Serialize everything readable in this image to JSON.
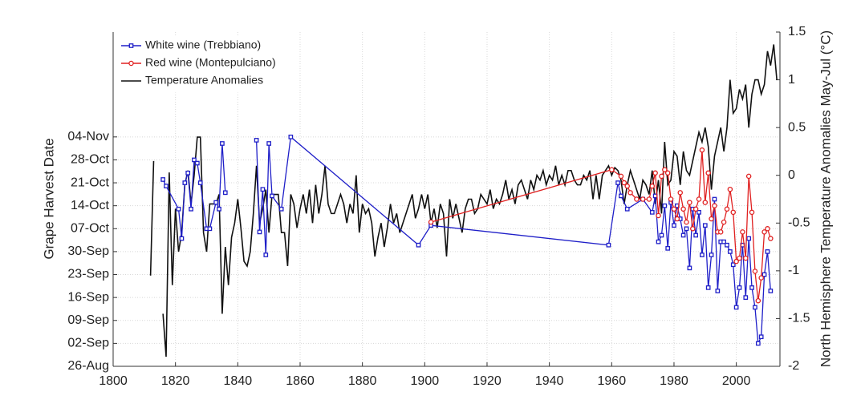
{
  "chart_data": {
    "type": "line",
    "ylabel": "Grape Harvest Date",
    "y2label": "North Hemisphere Temperature Anomalies May-Jul (°C)",
    "xlim": [
      1800,
      2014
    ],
    "xticks": [
      1800,
      1820,
      1840,
      1860,
      1880,
      1900,
      1920,
      1940,
      1960,
      1980,
      2000
    ],
    "ylim": [
      238,
      340
    ],
    "yticks": [
      {
        "value": 238,
        "label": "26-Aug"
      },
      {
        "value": 245,
        "label": "02-Sep"
      },
      {
        "value": 252,
        "label": "09-Sep"
      },
      {
        "value": 259,
        "label": "16-Sep"
      },
      {
        "value": 266,
        "label": "23-Sep"
      },
      {
        "value": 273,
        "label": "30-Sep"
      },
      {
        "value": 280,
        "label": "07-Oct"
      },
      {
        "value": 287,
        "label": "14-Oct"
      },
      {
        "value": 294,
        "label": "21-Oct"
      },
      {
        "value": 301,
        "label": "28-Oct"
      },
      {
        "value": 308,
        "label": "04-Nov"
      }
    ],
    "y2lim": [
      -2,
      1.5
    ],
    "y2ticks": [
      -2,
      -1.5,
      -1,
      -0.5,
      0,
      0.5,
      1,
      1.5
    ],
    "grid": true,
    "legend": "upper left",
    "series": [
      {
        "name": "White wine (Trebbiano)",
        "color": "#1f1fc8",
        "marker": "square",
        "axis": "y",
        "x": [
          1816,
          1817,
          1821,
          1822,
          1823,
          1824,
          1825,
          1826,
          1827,
          1828,
          1830,
          1831,
          1833,
          1834,
          1835,
          1836,
          1841,
          1846,
          1847,
          1848,
          1849,
          1850,
          1851,
          1854,
          1857,
          1898,
          1902,
          1959,
          1962,
          1963,
          1965,
          1970,
          1973,
          1974,
          1975,
          1976,
          1977,
          1978,
          1979,
          1980,
          1981,
          1982,
          1983,
          1984,
          1985,
          1986,
          1987,
          1988,
          1989,
          1990,
          1991,
          1992,
          1993,
          1994,
          1995,
          1996,
          1997,
          1998,
          1999,
          2000,
          2001,
          2002,
          2003,
          2004,
          2005,
          2006,
          2007,
          2008,
          2009,
          2010,
          2011
        ],
        "values": [
          295,
          293,
          286,
          277,
          294,
          297,
          286,
          301,
          300,
          294,
          280,
          280,
          288,
          286,
          306,
          291,
          null,
          307,
          279,
          292,
          272,
          306,
          290,
          286,
          308,
          275,
          281,
          275,
          294,
          290,
          286,
          289,
          285,
          290,
          276,
          278,
          287,
          274,
          288,
          281,
          287,
          283,
          278,
          280,
          268,
          286,
          278,
          285,
          272,
          281,
          262,
          272,
          289,
          261,
          276,
          276,
          275,
          273,
          269,
          256,
          262,
          275,
          259,
          277,
          262,
          256,
          245,
          247,
          266,
          273,
          261
        ]
      },
      {
        "name": "Red wine (Montepulciano)",
        "color": "#e02020",
        "marker": "circle",
        "axis": "y",
        "x": [
          1902,
          1960,
          1963,
          1964,
          1965,
          1966,
          1968,
          1970,
          1972,
          1973,
          1974,
          1975,
          1976,
          1977,
          1978,
          1979,
          1980,
          1981,
          1982,
          1983,
          1984,
          1985,
          1986,
          1987,
          1988,
          1989,
          1990,
          1991,
          1992,
          1993,
          1994,
          1995,
          1996,
          1997,
          1998,
          1999,
          2000,
          2001,
          2002,
          2003,
          2004,
          2005,
          2006,
          2007,
          2008,
          2009,
          2010,
          2011
        ],
        "values": [
          282,
          298,
          296,
          294,
          293,
          291,
          289,
          289,
          289,
          293,
          297,
          284,
          296,
          298,
          297,
          289,
          286,
          283,
          291,
          286,
          282,
          288,
          280,
          286,
          289,
          304,
          288,
          297,
          283,
          287,
          279,
          279,
          282,
          286,
          292,
          285,
          270,
          271,
          279,
          271,
          296,
          285,
          267,
          258,
          265,
          279,
          280,
          277
        ]
      },
      {
        "name": "Temperature Anomalies",
        "color": "#111111",
        "marker": "none",
        "axis": "y2",
        "x": [
          1812,
          1813,
          1814,
          1815,
          1816,
          1817,
          1818,
          1819,
          1820,
          1821,
          1822,
          1823,
          1824,
          1825,
          1826,
          1827,
          1828,
          1829,
          1830,
          1831,
          1832,
          1833,
          1834,
          1835,
          1836,
          1837,
          1838,
          1839,
          1840,
          1841,
          1842,
          1843,
          1844,
          1845,
          1846,
          1847,
          1848,
          1849,
          1850,
          1851,
          1852,
          1853,
          1854,
          1855,
          1856,
          1857,
          1858,
          1859,
          1860,
          1861,
          1862,
          1863,
          1864,
          1865,
          1866,
          1867,
          1868,
          1869,
          1870,
          1871,
          1872,
          1873,
          1874,
          1875,
          1876,
          1877,
          1878,
          1879,
          1880,
          1881,
          1882,
          1883,
          1884,
          1885,
          1886,
          1887,
          1888,
          1889,
          1890,
          1891,
          1892,
          1893,
          1894,
          1895,
          1896,
          1897,
          1898,
          1899,
          1900,
          1901,
          1902,
          1903,
          1904,
          1905,
          1906,
          1907,
          1908,
          1909,
          1910,
          1911,
          1912,
          1913,
          1914,
          1915,
          1916,
          1917,
          1918,
          1919,
          1920,
          1921,
          1922,
          1923,
          1924,
          1925,
          1926,
          1927,
          1928,
          1929,
          1930,
          1931,
          1932,
          1933,
          1934,
          1935,
          1936,
          1937,
          1938,
          1939,
          1940,
          1941,
          1942,
          1943,
          1944,
          1945,
          1946,
          1947,
          1948,
          1949,
          1950,
          1951,
          1952,
          1953,
          1954,
          1955,
          1956,
          1957,
          1958,
          1959,
          1960,
          1961,
          1962,
          1963,
          1964,
          1965,
          1966,
          1967,
          1968,
          1969,
          1970,
          1971,
          1972,
          1973,
          1974,
          1975,
          1976,
          1977,
          1978,
          1979,
          1980,
          1981,
          1982,
          1983,
          1984,
          1985,
          1986,
          1987,
          1988,
          1989,
          1990,
          1991,
          1992,
          1993,
          1994,
          1995,
          1996,
          1997,
          1998,
          1999,
          2000,
          2001,
          2002,
          2003,
          2004,
          2005,
          2006,
          2007,
          2008,
          2009,
          2010,
          2011,
          2012,
          2013
        ],
        "values": [
          -1.05,
          0.15,
          null,
          null,
          -1.45,
          -1.9,
          0.03,
          -1.15,
          -0.35,
          -0.8,
          -0.6,
          -0.1,
          0.05,
          -0.3,
          0.0,
          0.4,
          0.4,
          -0.6,
          -0.8,
          -0.3,
          -0.3,
          -0.3,
          -0.2,
          -1.45,
          -0.75,
          -1.15,
          -0.65,
          -0.5,
          -0.25,
          -0.55,
          -0.9,
          -0.95,
          -0.8,
          -0.4,
          0.1,
          -0.5,
          -0.35,
          -0.15,
          -0.6,
          -0.2,
          -0.2,
          -0.2,
          -0.6,
          -0.6,
          -0.95,
          -0.2,
          -0.3,
          -0.55,
          -0.35,
          -0.2,
          -0.4,
          -0.15,
          -0.5,
          -0.1,
          -0.4,
          -0.2,
          0.1,
          -0.3,
          -0.4,
          -0.4,
          -0.3,
          -0.2,
          -0.3,
          -0.5,
          -0.3,
          -0.4,
          0.0,
          -0.6,
          -0.3,
          -0.4,
          -0.35,
          -0.5,
          -0.85,
          -0.65,
          -0.5,
          -0.75,
          -0.55,
          -0.3,
          -0.5,
          -0.4,
          -0.6,
          -0.5,
          -0.4,
          -0.3,
          -0.2,
          -0.45,
          -0.35,
          -0.2,
          -0.35,
          -0.2,
          -0.5,
          -0.35,
          -0.55,
          -0.3,
          -0.4,
          -0.85,
          -0.25,
          -0.45,
          -0.3,
          -0.45,
          -0.6,
          -0.35,
          -0.25,
          -0.25,
          -0.4,
          -0.35,
          -0.2,
          -0.25,
          -0.3,
          -0.15,
          -0.35,
          -0.25,
          -0.3,
          -0.2,
          -0.05,
          -0.25,
          -0.15,
          -0.3,
          -0.1,
          -0.05,
          -0.15,
          -0.25,
          -0.05,
          -0.15,
          0.0,
          -0.05,
          0.05,
          -0.1,
          0.0,
          -0.05,
          0.1,
          -0.1,
          0.0,
          -0.1,
          0.05,
          0.05,
          -0.05,
          -0.1,
          -0.1,
          0.0,
          -0.05,
          0.05,
          -0.25,
          0.0,
          -0.25,
          0.0,
          0.05,
          0.1,
          0.0,
          0.08,
          0.05,
          -0.05,
          -0.3,
          -0.1,
          0.05,
          -0.05,
          -0.15,
          -0.25,
          -0.05,
          -0.1,
          -0.2,
          0.05,
          -0.3,
          -0.05,
          -0.4,
          0.35,
          -0.1,
          -0.05,
          0.25,
          0.2,
          -0.1,
          0.25,
          0.05,
          0.0,
          0.15,
          0.3,
          0.45,
          0.35,
          0.5,
          0.3,
          -0.15,
          0.2,
          0.35,
          0.5,
          0.25,
          0.5,
          1.0,
          0.65,
          0.7,
          0.9,
          0.8,
          0.95,
          0.5,
          0.85,
          1.0,
          1.0,
          0.85,
          0.95,
          1.3,
          1.15,
          1.37,
          1.0
        ]
      }
    ]
  }
}
